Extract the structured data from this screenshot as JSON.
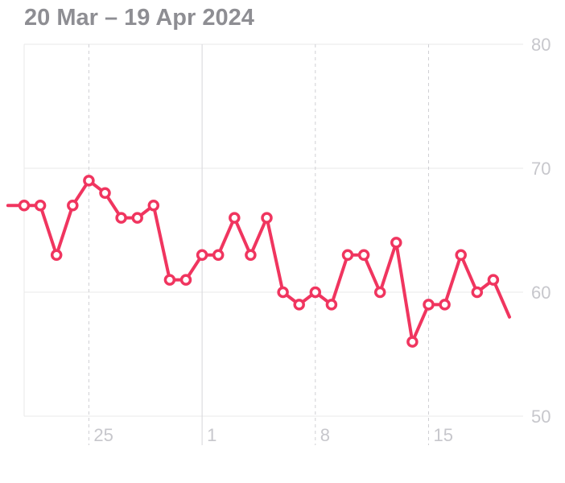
{
  "header": {
    "date_range": "20 Mar – 19 Apr 2024"
  },
  "colors": {
    "series": "#f0355f",
    "grid": "#e8e8ea",
    "tick_text": "#c7c7cc",
    "header_text": "#8e8e93"
  },
  "chart_data": {
    "type": "line",
    "title": "",
    "xlabel": "",
    "ylabel": "",
    "ylim": [
      50,
      80
    ],
    "y_ticks": [
      50,
      60,
      70,
      80
    ],
    "y_axis_position": "right",
    "grid": true,
    "x": [
      "2024-03-21",
      "2024-03-22",
      "2024-03-23",
      "2024-03-24",
      "2024-03-25",
      "2024-03-26",
      "2024-03-27",
      "2024-03-28",
      "2024-03-29",
      "2024-03-30",
      "2024-03-31",
      "2024-04-01",
      "2024-04-02",
      "2024-04-03",
      "2024-04-04",
      "2024-04-05",
      "2024-04-06",
      "2024-04-07",
      "2024-04-08",
      "2024-04-09",
      "2024-04-10",
      "2024-04-11",
      "2024-04-12",
      "2024-04-13",
      "2024-04-14",
      "2024-04-15",
      "2024-04-16",
      "2024-04-17",
      "2024-04-18",
      "2024-04-19"
    ],
    "x_ticks": [
      {
        "date": "2024-03-25",
        "label": "25"
      },
      {
        "date": "2024-04-01",
        "label": "1"
      },
      {
        "date": "2024-04-08",
        "label": "8"
      },
      {
        "date": "2024-04-15",
        "label": "15"
      }
    ],
    "series": [
      {
        "values": [
          67,
          67,
          63,
          67,
          69,
          68,
          66,
          66,
          67,
          61,
          61,
          63,
          63,
          66,
          63,
          66,
          60,
          59,
          60,
          59,
          63,
          63,
          60,
          64,
          56,
          59,
          59,
          63,
          60,
          61
        ]
      }
    ]
  }
}
